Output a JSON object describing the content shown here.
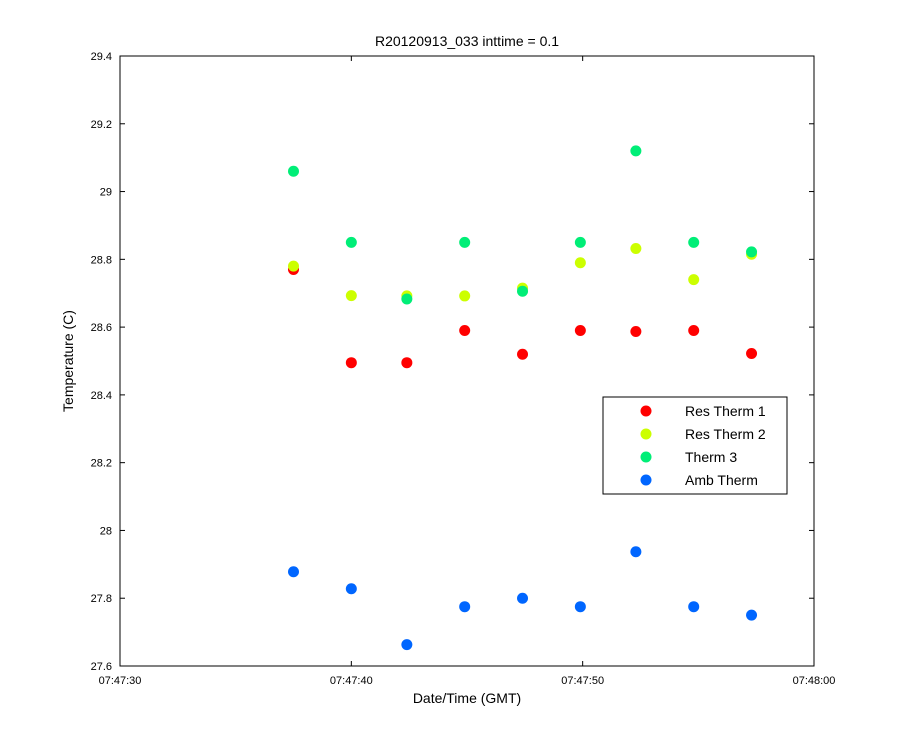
{
  "chart_data": {
    "type": "scatter",
    "title": "R20120913_033 inttime = 0.1",
    "xlabel": "Date/Time (GMT)",
    "ylabel": "Temperature (C)",
    "xlim": [
      "07:47:30",
      "07:48:00"
    ],
    "ylim": [
      27.6,
      29.4
    ],
    "x_ticks": [
      "07:47:30",
      "07:47:40",
      "07:47:50",
      "07:48:00"
    ],
    "y_ticks": [
      "27.6",
      "27.8",
      "28",
      "28.2",
      "28.4",
      "28.6",
      "28.8",
      "29",
      "29.2",
      "29.4"
    ],
    "grid": false,
    "legend_position": "right",
    "x": [
      "07:47:37.5",
      "07:47:40.0",
      "07:47:42.4",
      "07:47:44.9",
      "07:47:47.4",
      "07:47:49.9",
      "07:47:52.3",
      "07:47:54.8",
      "07:47:57.3"
    ],
    "series": [
      {
        "name": "Res Therm 1",
        "color": "#ff0000",
        "values": [
          28.77,
          28.495,
          28.495,
          28.59,
          28.52,
          28.59,
          28.587,
          28.59,
          28.522
        ]
      },
      {
        "name": "Res Therm 2",
        "color": "#ccff00",
        "values": [
          28.78,
          28.693,
          28.692,
          28.692,
          28.715,
          28.79,
          28.832,
          28.74,
          28.815
        ]
      },
      {
        "name": "Therm 3",
        "color": "#00ee77",
        "values": [
          29.06,
          28.85,
          28.683,
          28.85,
          28.706,
          28.85,
          29.12,
          28.85,
          28.822
        ]
      },
      {
        "name": "Amb Therm",
        "color": "#0066ff",
        "values": [
          27.878,
          27.828,
          27.663,
          27.775,
          27.8,
          27.775,
          27.937,
          27.775,
          27.75
        ]
      }
    ]
  }
}
